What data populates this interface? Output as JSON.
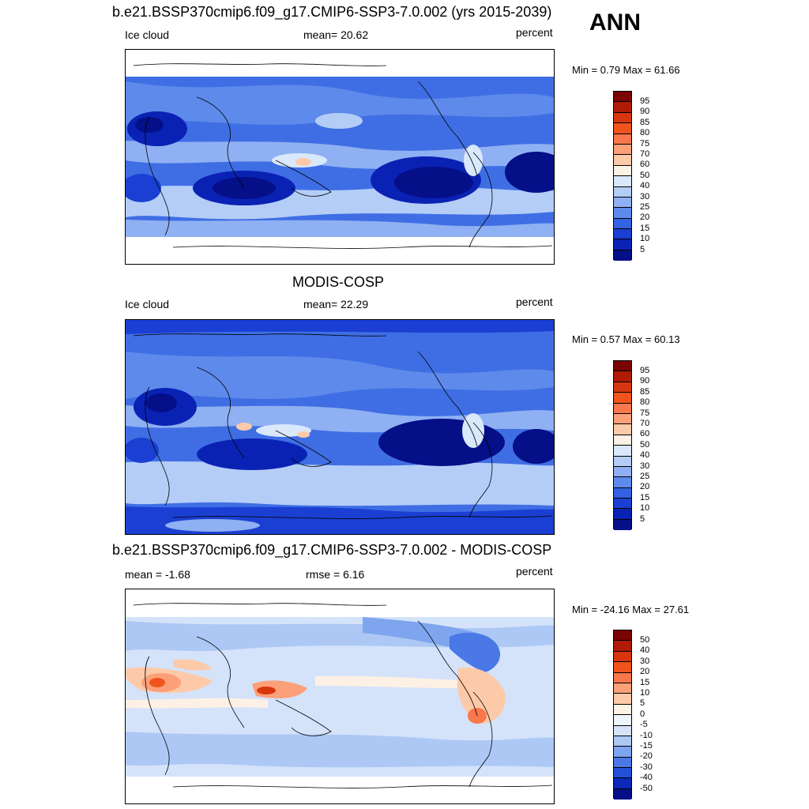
{
  "season": "ANN",
  "panels": [
    {
      "title": "b.e21.BSSP370cmip6.f09_g17.CMIP6-SSP3-7.0.002 (yrs 2015-2039)",
      "left_label": "Ice cloud",
      "center_label": "mean=  20.62",
      "right_label": "percent",
      "minmax": "Min =   0.79 Max =  61.66",
      "colorbar": {
        "levels": [
          "95",
          "90",
          "85",
          "80",
          "75",
          "70",
          "60",
          "50",
          "40",
          "30",
          "25",
          "20",
          "15",
          "10",
          "5"
        ],
        "colors": [
          "#7a0403",
          "#b01b08",
          "#d8360f",
          "#f0541c",
          "#f9774a",
          "#fca079",
          "#fdcaa9",
          "#fdf0e4",
          "#d9e8fb",
          "#b4cdf7",
          "#8fb0f2",
          "#5e8aeb",
          "#3362e2",
          "#1a3fd2",
          "#0a22b4",
          "#050f88"
        ]
      }
    },
    {
      "title": "MODIS-COSP",
      "left_label": "Ice cloud",
      "center_label": "mean=  22.29",
      "right_label": "percent",
      "minmax": "Min =   0.57 Max =  60.13",
      "colorbar": {
        "levels": [
          "95",
          "90",
          "85",
          "80",
          "75",
          "70",
          "60",
          "50",
          "40",
          "30",
          "25",
          "20",
          "15",
          "10",
          "5"
        ],
        "colors": [
          "#7a0403",
          "#b01b08",
          "#d8360f",
          "#f0541c",
          "#f9774a",
          "#fca079",
          "#fdcaa9",
          "#fdf0e4",
          "#d9e8fb",
          "#b4cdf7",
          "#8fb0f2",
          "#5e8aeb",
          "#3362e2",
          "#1a3fd2",
          "#0a22b4",
          "#050f88"
        ]
      }
    },
    {
      "title": "b.e21.BSSP370cmip6.f09_g17.CMIP6-SSP3-7.0.002 - MODIS-COSP",
      "left_label": "mean =  -1.68",
      "center_label": "rmse =    6.16",
      "right_label": "percent",
      "minmax": "Min = -24.16 Max =  27.61",
      "colorbar": {
        "levels": [
          "50",
          "40",
          "30",
          "20",
          "15",
          "10",
          "5",
          "0",
          "-5",
          "-10",
          "-15",
          "-20",
          "-30",
          "-40",
          "-50"
        ],
        "colors": [
          "#7a0403",
          "#b01b08",
          "#d8360f",
          "#f0541c",
          "#f9774a",
          "#fca079",
          "#fdcaa9",
          "#fdf0e4",
          "#eef4fc",
          "#d4e3fa",
          "#adc8f5",
          "#7ea5ee",
          "#4a78e6",
          "#2450d8",
          "#0c28b8",
          "#050f88"
        ]
      }
    }
  ]
}
